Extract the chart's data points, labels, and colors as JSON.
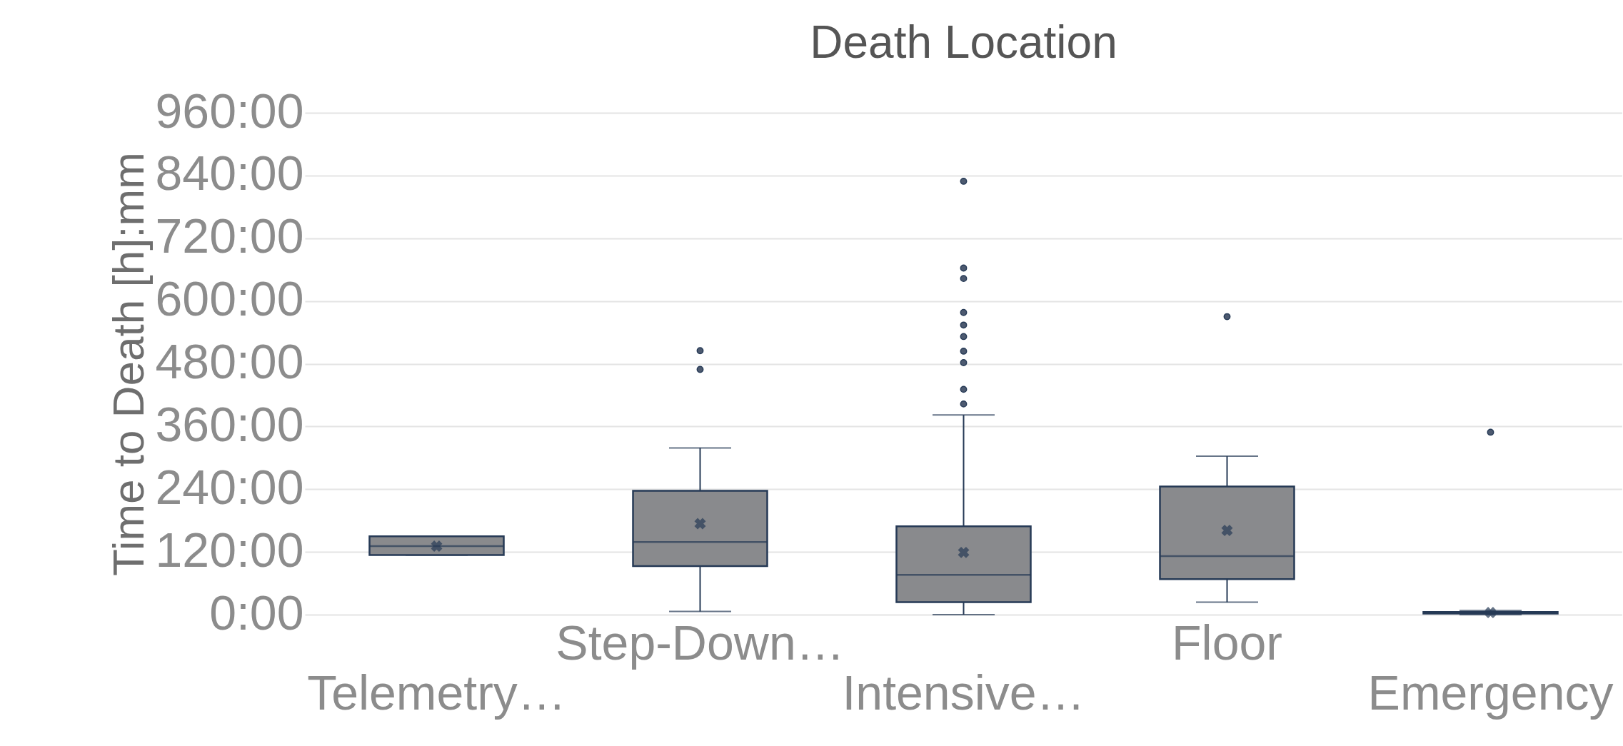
{
  "chart_data": {
    "type": "box",
    "title": "Death Location",
    "ylabel": "Time to Death [h]:mm",
    "categories": [
      "Telemetry…",
      "Step-Down…",
      "Intensive…",
      "Floor",
      "Emergency"
    ],
    "series": [
      {
        "color": "#898a8d",
        "boxes": [
          {
            "low": 114,
            "q1": 114,
            "median": 131,
            "q3": 150,
            "high": 150,
            "mean": 131
          },
          {
            "low": 6,
            "q1": 93,
            "median": 139,
            "q3": 237,
            "high": 319,
            "mean": 174,
            "outliers": [
              469,
              505
            ]
          },
          {
            "low": 0,
            "q1": 24,
            "median": 76,
            "q3": 169,
            "high": 382,
            "mean": 119,
            "outliers": [
              403,
              431,
              482,
              504,
              532,
              554,
              578,
              643,
              663,
              829
            ]
          },
          {
            "low": 24,
            "q1": 68,
            "median": 112,
            "q3": 245,
            "high": 303,
            "mean": 161,
            "outliers": [
              570
            ]
          },
          {
            "low": 0,
            "q1": 2,
            "median": 3,
            "q3": 5,
            "high": 8,
            "mean": 4,
            "outliers": [
              349
            ]
          }
        ]
      }
    ],
    "ylim": [
      0,
      960
    ],
    "yticks": [
      {
        "value": 0,
        "label": "0:00"
      },
      {
        "value": 120,
        "label": "120:00"
      },
      {
        "value": 240,
        "label": "240:00"
      },
      {
        "value": 360,
        "label": "360:00"
      },
      {
        "value": 480,
        "label": "480:00"
      },
      {
        "value": 600,
        "label": "600:00"
      },
      {
        "value": 720,
        "label": "720:00"
      },
      {
        "value": 840,
        "label": "840:00"
      },
      {
        "value": 960,
        "label": "960:00"
      }
    ],
    "grid": "y"
  }
}
